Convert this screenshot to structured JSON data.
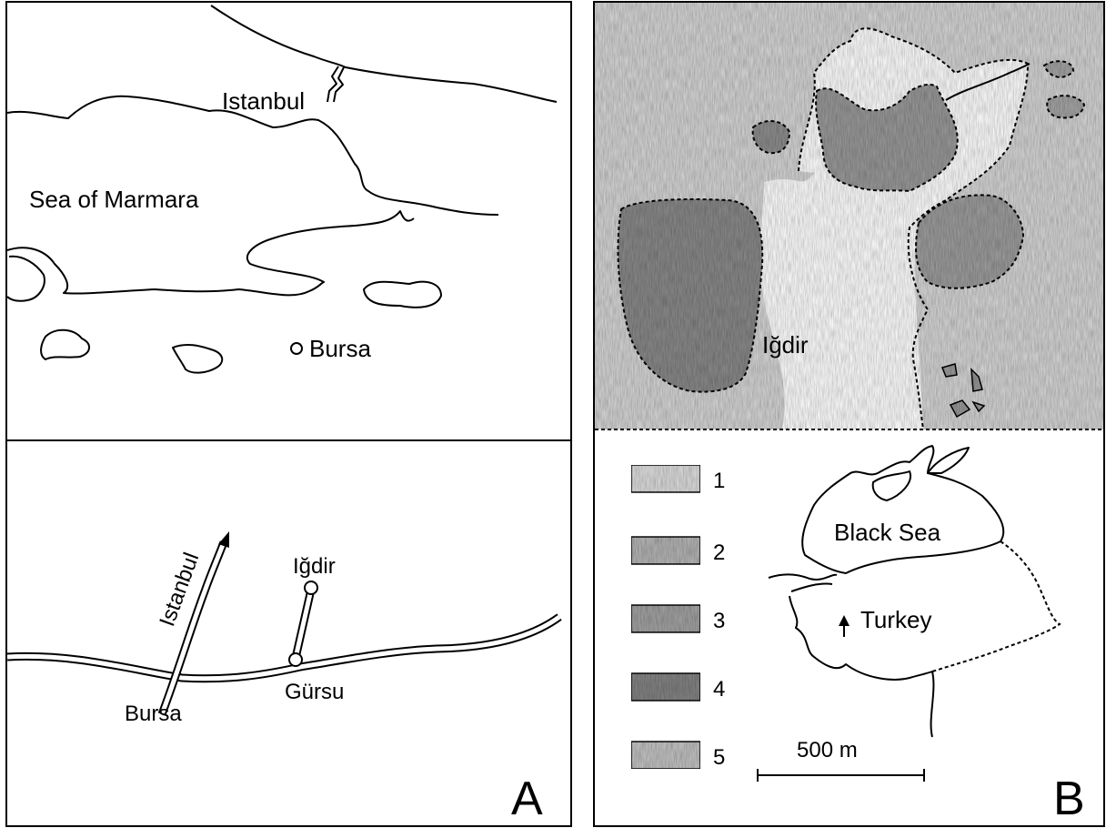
{
  "panel_a": {
    "top_map": {
      "city_north": "Istanbul",
      "sea": "Sea of Marmara",
      "city_south": "Bursa"
    },
    "bottom_map": {
      "road_label": "Istanbul",
      "site": "Iğdir",
      "town": "Gürsu",
      "city": "Bursa"
    },
    "panel_label": "A"
  },
  "panel_b": {
    "site": "Iğdir",
    "legend": [
      "1",
      "2",
      "3",
      "4",
      "5"
    ],
    "inset": {
      "sea": "Black Sea",
      "country": "Turkey"
    },
    "scale_bar": "500 m",
    "panel_label": "B"
  }
}
